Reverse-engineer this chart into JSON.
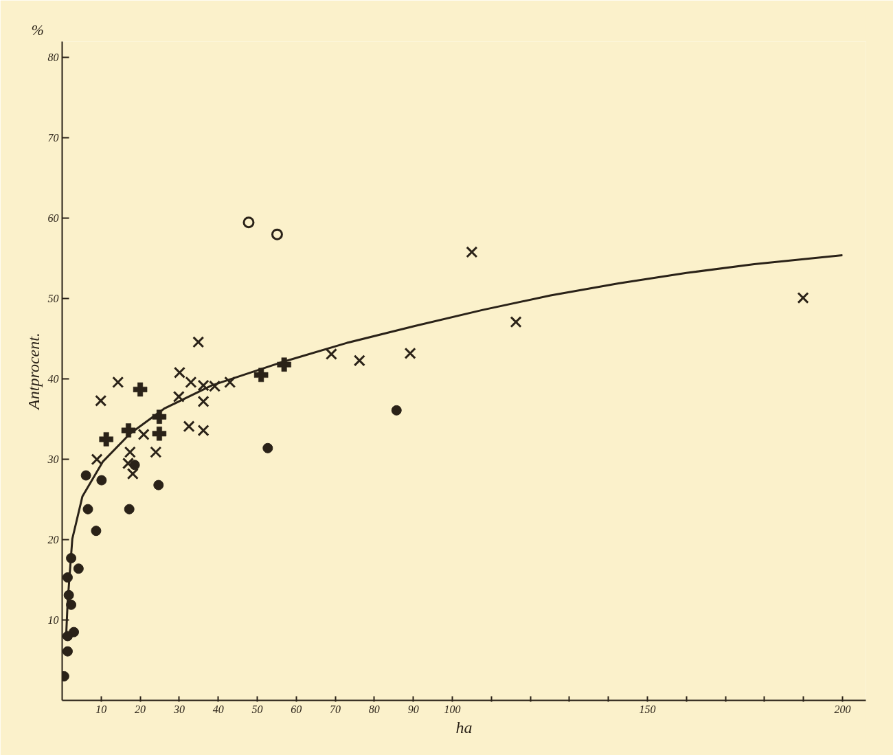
{
  "chart_data": {
    "type": "scatter",
    "xlabel": "ha",
    "ylabel": "Antprocent.",
    "annotations": [
      "%"
    ],
    "xlim": [
      0,
      206
    ],
    "ylim": [
      0,
      82
    ],
    "xticks": [
      10,
      20,
      30,
      40,
      50,
      60,
      70,
      80,
      90,
      100,
      {
        "value": 110,
        "label": null
      },
      {
        "value": 120,
        "label": null
      },
      {
        "value": 130,
        "label": null
      },
      {
        "value": 140,
        "label": null
      },
      150,
      {
        "value": 160,
        "label": null
      },
      {
        "value": 170,
        "label": null
      },
      {
        "value": 180,
        "label": null
      },
      {
        "value": 190,
        "label": null
      },
      200
    ],
    "yticks": [
      10,
      20,
      30,
      40,
      50,
      60,
      70,
      80
    ],
    "grid": false,
    "series": [
      {
        "type": "scatter",
        "marker": "circle",
        "color": "#2a2218",
        "x": [
          6.1,
          6.6,
          8.7,
          10.1,
          17.2,
          24.7,
          52.7,
          85.7,
          4.2,
          18.6,
          2.3,
          1.4,
          1.7,
          2.3,
          3.0,
          1.4,
          1.4,
          0.5
        ],
        "values": [
          28.0,
          23.8,
          21.1,
          27.4,
          23.8,
          26.8,
          31.4,
          36.1,
          16.4,
          29.3,
          17.7,
          15.3,
          13.1,
          11.9,
          8.5,
          8.0,
          6.1,
          3.0
        ]
      },
      {
        "type": "scatter",
        "marker": "circle_open",
        "color": "#2a2218",
        "x": [
          47.8,
          55.1
        ],
        "values": [
          59.5,
          58.0
        ]
      },
      {
        "type": "scatter",
        "marker": "cross",
        "color": "#2a2218",
        "x": [
          9.9,
          14.3,
          8.9,
          17.4,
          16.9,
          18.1,
          24.0,
          30.1,
          33.0,
          29.9,
          36.2,
          39.1,
          43.0,
          36.2,
          32.5,
          36.2,
          20.9,
          34.9,
          69.0,
          76.2,
          89.2,
          116.3,
          105.0,
          189.9
        ],
        "values": [
          37.3,
          39.6,
          30.0,
          30.9,
          29.5,
          28.2,
          30.9,
          40.8,
          39.6,
          37.8,
          39.2,
          39.1,
          39.6,
          37.2,
          34.1,
          33.6,
          33.1,
          44.6,
          43.1,
          42.3,
          43.2,
          47.1,
          55.8,
          50.1
        ]
      },
      {
        "type": "scatter",
        "color": "#2a2218",
        "x": [
          20.0,
          11.3,
          17.0,
          24.9,
          24.9,
          51.0,
          56.9
        ],
        "values": [
          38.7,
          32.5,
          33.6,
          33.2,
          35.3,
          40.5,
          41.8
        ]
      },
      {
        "type": "line",
        "marker": "none",
        "line_style": "solid",
        "color": "#2a2218",
        "x": [
          1.0,
          1.4,
          2.6,
          5.2,
          10.4,
          17.4,
          26.1,
          38.3,
          55.7,
          73.0,
          90.4,
          107.8,
          125.2,
          142.6,
          160.0,
          177.4,
          200.0
        ],
        "values": [
          7.8,
          12.2,
          20.1,
          25.4,
          29.7,
          33.2,
          36.3,
          39.2,
          42.0,
          44.5,
          46.6,
          48.6,
          50.4,
          51.9,
          53.2,
          54.3,
          55.4
        ]
      }
    ]
  }
}
